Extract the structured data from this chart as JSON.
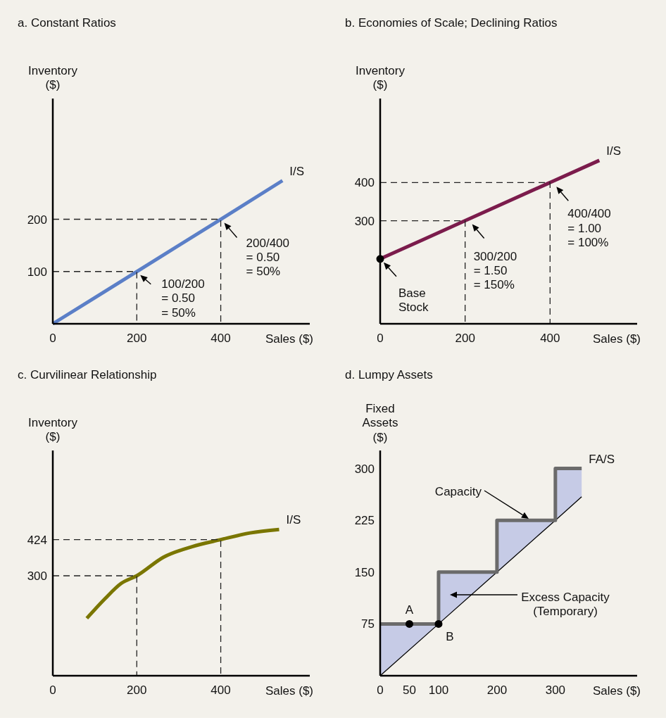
{
  "chart_data": [
    {
      "type": "line",
      "title": "a. Constant Ratios",
      "xlabel": "Sales ($)",
      "ylabel": "Inventory\n($)",
      "xlim": [
        0,
        612
      ],
      "ylim": [
        0,
        431
      ],
      "xticks": [
        0,
        200,
        400
      ],
      "yticks": [
        100,
        200
      ],
      "series": [
        {
          "name": "I/S",
          "color": "#5b7fc7",
          "x": [
            0,
            200,
            400,
            547
          ],
          "values": [
            0,
            100,
            200,
            274
          ]
        },
        {
          "color": "#222222",
          "line_style": "dashed",
          "x": [
            0,
            200,
            200
          ],
          "values": [
            100,
            100,
            0
          ]
        },
        {
          "color": "#222222",
          "line_style": "dashed",
          "x": [
            0,
            400,
            400
          ],
          "values": [
            200,
            200,
            0
          ]
        }
      ],
      "annotations": [
        {
          "text": "100/200\n= 0.50\n= 50%",
          "x": 200,
          "y": 100
        },
        {
          "text": "200/400\n= 0.50\n= 50%",
          "x": 400,
          "y": 200
        }
      ]
    },
    {
      "type": "line",
      "title": "b. Economies of Scale; Declining Ratios",
      "xlabel": "Sales ($)",
      "ylabel": "Inventory\n($)",
      "xlim": [
        0,
        605
      ],
      "ylim": [
        30,
        620
      ],
      "xticks": [
        0,
        200,
        400
      ],
      "yticks": [
        300,
        400
      ],
      "series": [
        {
          "name": "I/S",
          "color": "#7b1c4c",
          "x": [
            0,
            200,
            400,
            516
          ],
          "values": [
            200,
            300,
            400,
            458
          ]
        },
        {
          "color": "#222222",
          "line_style": "dashed",
          "x": [
            0,
            200,
            200
          ],
          "values": [
            300,
            300,
            30
          ]
        },
        {
          "color": "#222222",
          "line_style": "dashed",
          "x": [
            0,
            400,
            400
          ],
          "values": [
            400,
            400,
            30
          ]
        },
        {
          "type": "scatter",
          "marker": "circle",
          "color": "#000000",
          "x": [
            0
          ],
          "values": [
            200
          ]
        }
      ],
      "annotations": [
        {
          "text": "Base\nStock",
          "x": 0,
          "y": 200
        },
        {
          "text": "300/200\n= 1.50\n= 150%",
          "x": 200,
          "y": 300
        },
        {
          "text": "400/400\n= 1.00\n= 100%",
          "x": 400,
          "y": 400
        }
      ]
    },
    {
      "type": "line",
      "title": "c. Curvilinear Relationship",
      "xlabel": "Sales ($)",
      "ylabel": "Inventory\n($)",
      "xlim": [
        0,
        612
      ],
      "ylim": [
        -43,
        730
      ],
      "xticks": [
        0,
        200,
        400
      ],
      "yticks": [
        300,
        424
      ],
      "series": [
        {
          "name": "I/S",
          "color": "#7a7600",
          "x": [
            81,
            124,
            163,
            200,
            264,
            332,
            400,
            470,
            539
          ],
          "values": [
            154,
            221,
            274,
            300,
            364,
            400,
            424,
            447,
            459
          ]
        },
        {
          "color": "#222222",
          "line_style": "dashed",
          "x": [
            0,
            200,
            200
          ],
          "values": [
            300,
            300,
            -43
          ]
        },
        {
          "color": "#222222",
          "line_style": "dashed",
          "x": [
            0,
            400,
            400
          ],
          "values": [
            424,
            424,
            -43
          ]
        }
      ]
    },
    {
      "type": "line",
      "title": "d. Lumpy Assets",
      "xlabel": "Sales ($)",
      "ylabel": "Fixed\nAssets\n($)",
      "xlim": [
        0,
        440
      ],
      "ylim": [
        0,
        326
      ],
      "xticks": [
        0,
        50,
        100,
        200,
        300
      ],
      "yticks": [
        75,
        150,
        225,
        300
      ],
      "series": [
        {
          "color": "#000000",
          "x": [
            0,
            100,
            100,
            200,
            200,
            300,
            300,
            345
          ],
          "values": [
            0,
            75,
            75,
            150,
            150,
            225,
            225,
            259
          ],
          "lower": [
            0,
            75,
            75,
            150,
            150,
            225,
            225,
            259
          ],
          "upper": [
            75,
            75,
            150,
            150,
            225,
            225,
            300,
            300
          ]
        },
        {
          "name": "FA/S",
          "color": "#6b6b6b",
          "x": [
            0,
            100,
            100,
            200,
            200,
            300,
            300,
            345
          ],
          "values": [
            75,
            75,
            150,
            150,
            225,
            225,
            300,
            300
          ]
        },
        {
          "type": "scatter",
          "marker": "circle",
          "color": "#000000",
          "x": [
            50,
            100
          ],
          "values": [
            75,
            75
          ]
        }
      ],
      "annotations": [
        "Capacity",
        "Excess Capacity\n(Temporary)",
        {
          "text": "A",
          "x": 50,
          "y": 75
        },
        {
          "text": "B",
          "x": 100,
          "y": 75
        }
      ]
    }
  ]
}
